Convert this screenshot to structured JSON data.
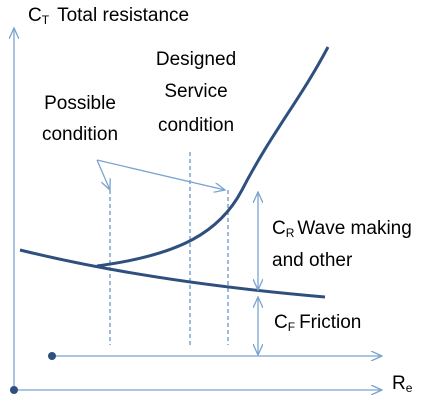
{
  "y_axis_label": {
    "symbol": "C",
    "subscript": "T",
    "text": "Total resistance"
  },
  "x_axis_label": {
    "symbol": "R",
    "subscript": "e"
  },
  "designed_label": [
    "Designed",
    "Service",
    "condition"
  ],
  "possible_label": [
    "Possible",
    "condition"
  ],
  "wave_label": {
    "symbol": "C",
    "subscript": "R",
    "lines": [
      "Wave making",
      "and other"
    ]
  },
  "friction_label": {
    "symbol": "C",
    "subscript": "F",
    "text": "Friction"
  }
}
